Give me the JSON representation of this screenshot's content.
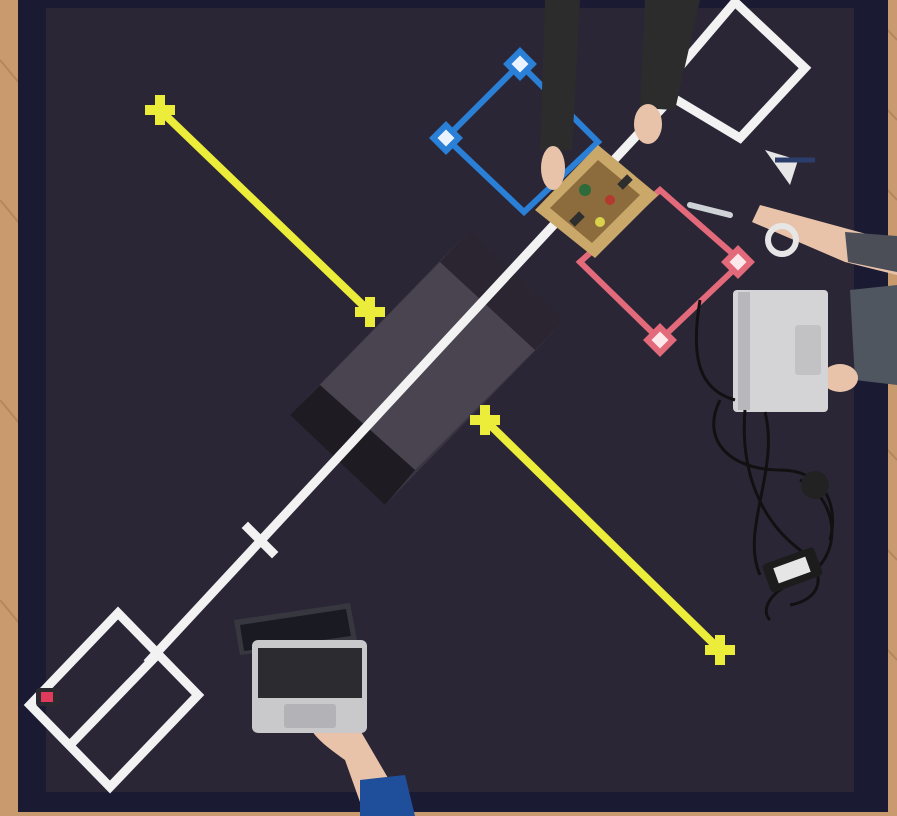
{
  "scene": {
    "colors": {
      "floor_wood": "#c89a6e",
      "arena_frame": "#1b1a33",
      "arena_mat": "#2b2636",
      "tape_white": "#f2f2f2",
      "tape_yellow": "#ecec3a",
      "square_blue": "#2a7fd6",
      "square_red": "#e26a7a",
      "ramp_dark": "#3a3540",
      "laptop_silver": "#d4d4d6",
      "sleeve_dark": "#2c2c2c",
      "sleeve_blue": "#1f4e9a",
      "skin": "#e8c3aa"
    },
    "objects": [
      "wooden-floor",
      "arena-frame",
      "arena-mat",
      "white-tape-diagonal",
      "white-square-bottom-left",
      "white-square-top-right",
      "yellow-tape-left",
      "yellow-tape-right",
      "blue-square-marker",
      "red-square-marker",
      "central-ramp",
      "robot-circuit-board",
      "laptop-bottom",
      "laptop-right",
      "cables-bundle",
      "people-hands",
      "small-robot-bottom-left"
    ]
  }
}
